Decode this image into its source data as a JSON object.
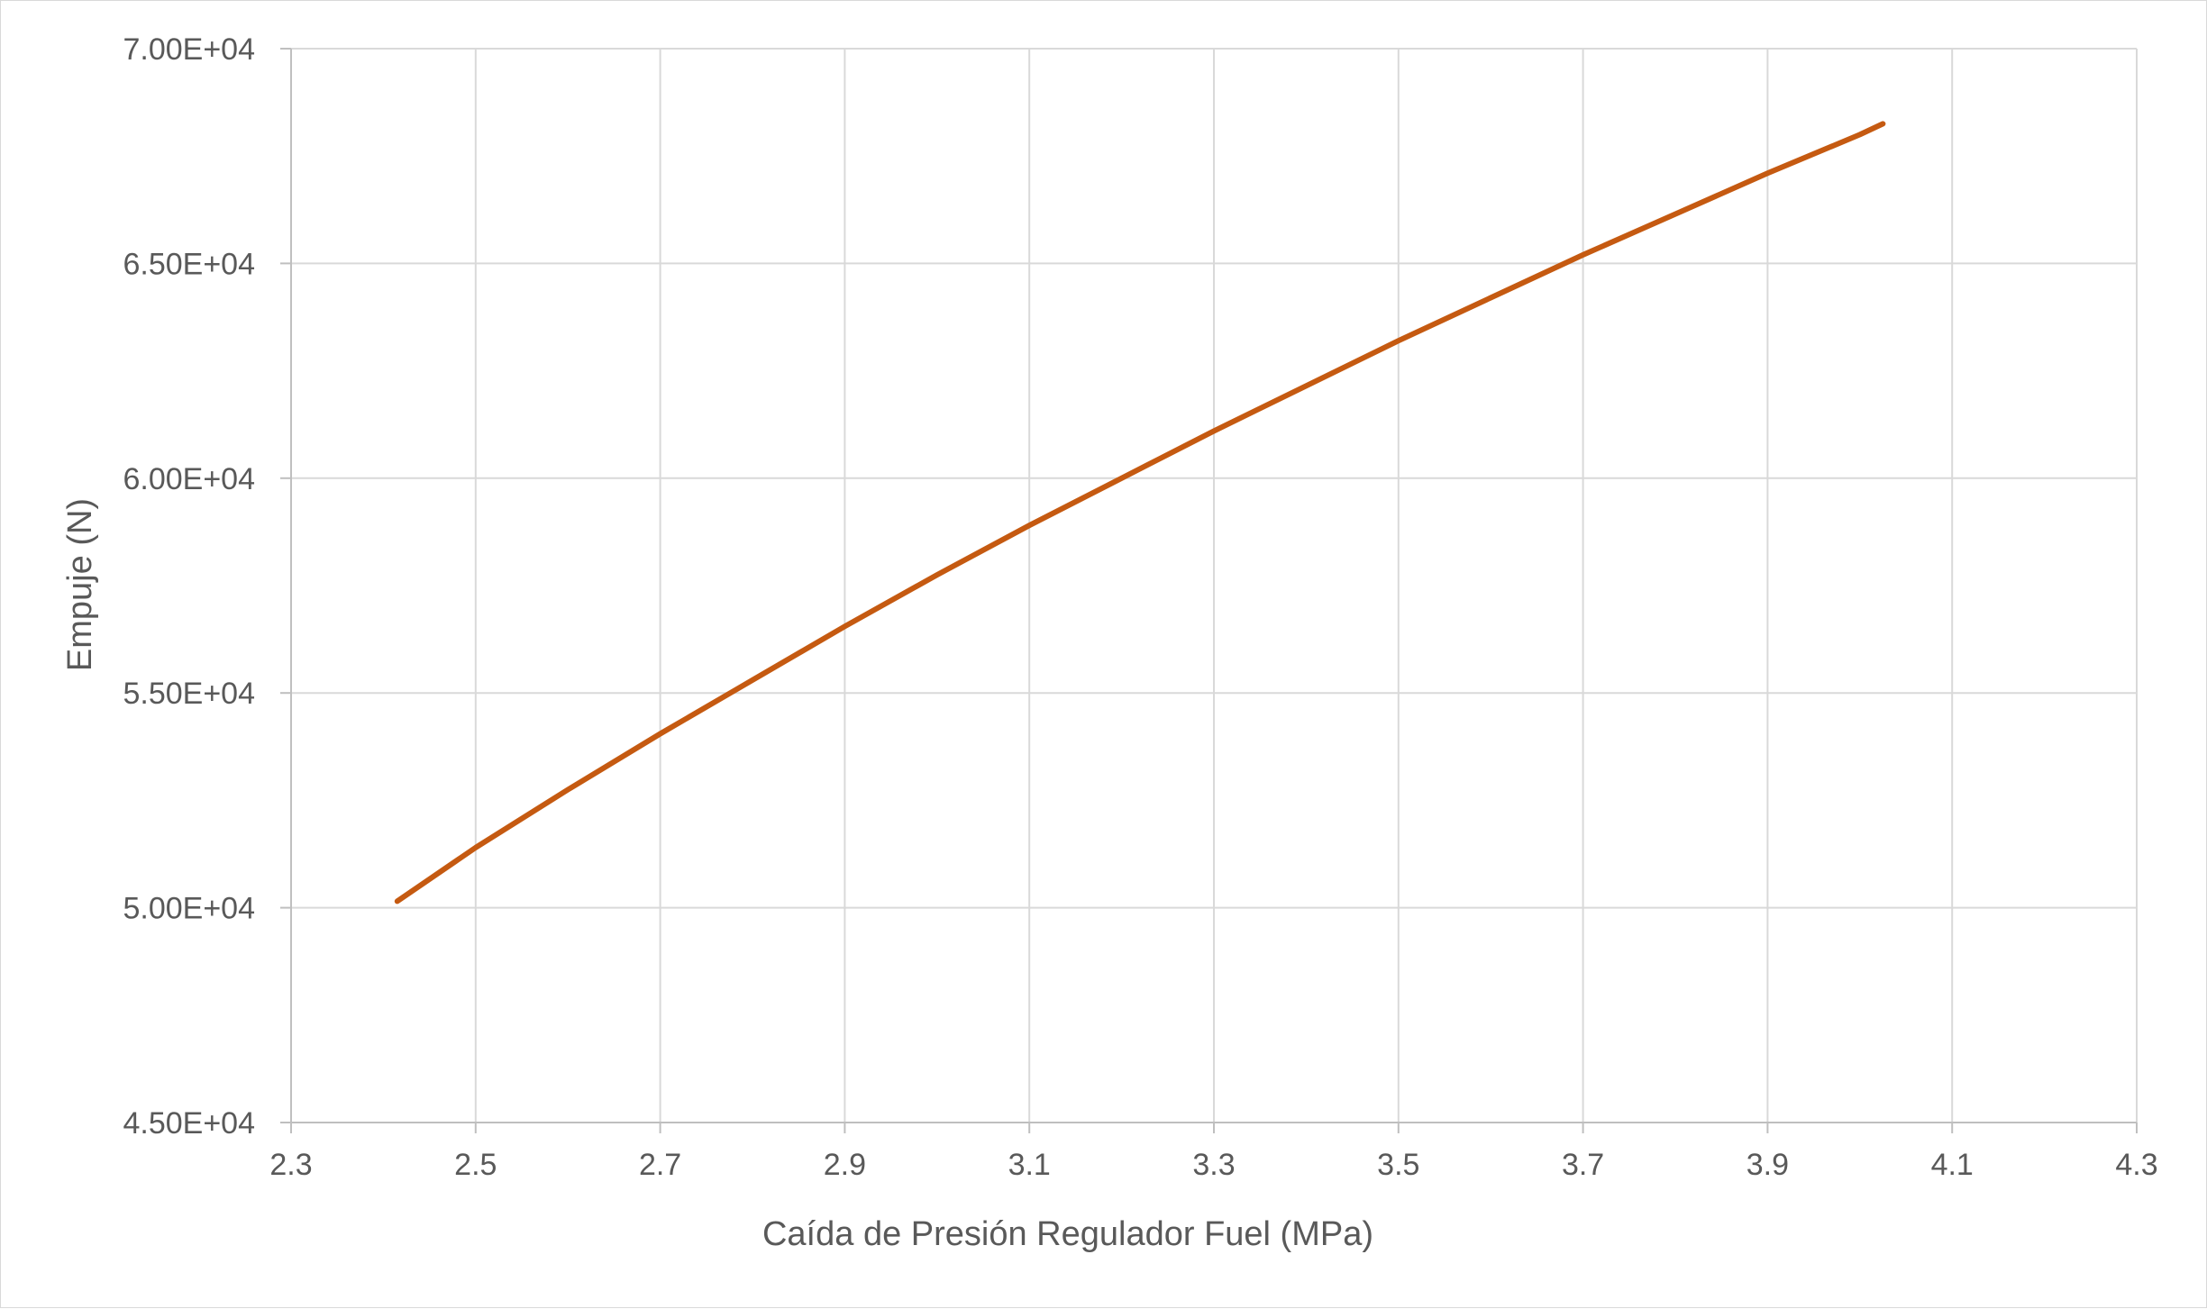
{
  "chart_data": {
    "type": "line",
    "title": "",
    "xlabel": "Caída de Presión Regulador Fuel (MPa)",
    "ylabel": "Empuje (N)",
    "xlim": [
      2.3,
      4.3
    ],
    "ylim": [
      45000,
      70000
    ],
    "x_ticks": [
      2.3,
      2.5,
      2.7,
      2.9,
      3.1,
      3.3,
      3.5,
      3.7,
      3.9,
      4.1,
      4.3
    ],
    "x_tick_labels": [
      "2.3",
      "2.5",
      "2.7",
      "2.9",
      "3.1",
      "3.3",
      "3.5",
      "3.7",
      "3.9",
      "4.1",
      "4.3"
    ],
    "y_ticks": [
      45000,
      50000,
      55000,
      60000,
      65000,
      70000
    ],
    "y_tick_labels": [
      "4.50E+04",
      "5.00E+04",
      "5.50E+04",
      "6.00E+04",
      "6.50E+04",
      "7.00E+04"
    ],
    "grid": true,
    "legend": "none",
    "series": [
      {
        "color": "#c55a11",
        "x": [
          2.415,
          2.5,
          2.6,
          2.7,
          2.8,
          2.9,
          3.0,
          3.1,
          3.2,
          3.3,
          3.4,
          3.5,
          3.6,
          3.7,
          3.8,
          3.9,
          4.0,
          4.025
        ],
        "y": [
          50150,
          51400,
          52750,
          54050,
          55300,
          56550,
          57750,
          58900,
          60000,
          61100,
          62150,
          63200,
          64200,
          65200,
          66150,
          67100,
          68000,
          68250
        ]
      }
    ]
  }
}
